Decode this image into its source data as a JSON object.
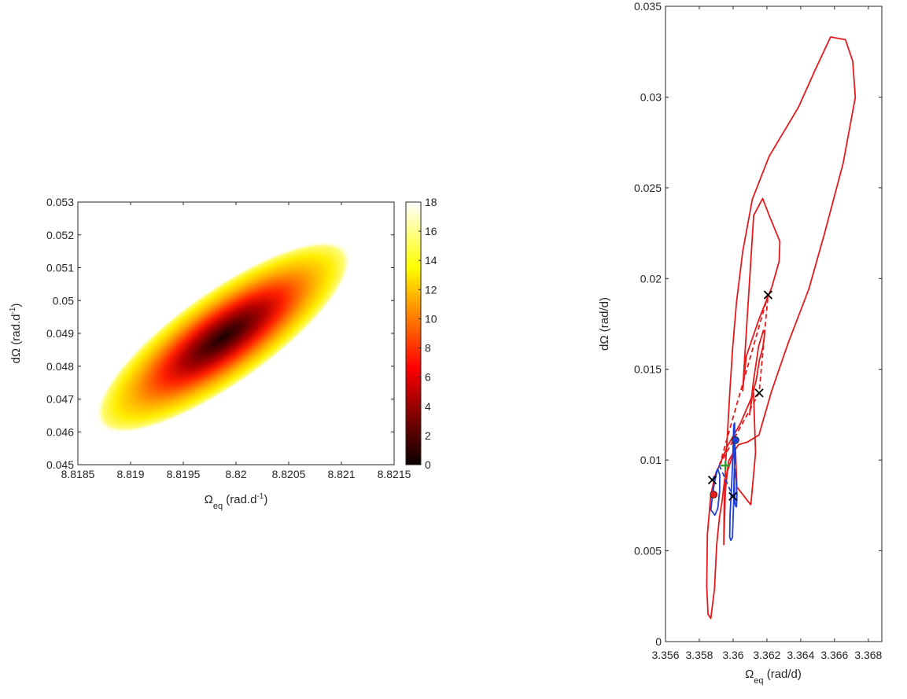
{
  "chart_data": [
    {
      "type": "heatmap",
      "xlabel": "Ω",
      "xlabel_sub": "eq",
      "xlabel_units_pre": " (rad.d",
      "xlabel_units_sup": "-1",
      "xlabel_units_post": ")",
      "ylabel": "dΩ (rad.d",
      "ylabel_sup": "-1",
      "ylabel_post": ")",
      "xlim": [
        8.8185,
        8.8215
      ],
      "ylim": [
        0.045,
        0.053
      ],
      "xticks": [
        8.8185,
        8.819,
        8.8195,
        8.82,
        8.8205,
        8.821,
        8.8215
      ],
      "xtick_labels": [
        "8.8185",
        "8.819",
        "8.8195",
        "8.82",
        "8.8205",
        "8.821",
        "8.8215"
      ],
      "yticks": [
        0.045,
        0.046,
        0.047,
        0.048,
        0.049,
        0.05,
        0.051,
        0.052,
        0.053
      ],
      "ytick_labels": [
        "0.045",
        "0.046",
        "0.047",
        "0.048",
        "0.049",
        "0.05",
        "0.051",
        "0.052",
        "0.053"
      ],
      "surface": {
        "center": [
          8.81988,
          0.04888
        ],
        "semi_major_axis": [
          0.0011,
          0.0025
        ],
        "semi_minor_axis": [
          -0.00034,
          0.00075
        ],
        "max_value": 18
      },
      "colorbar": {
        "colormap": "hot",
        "range": [
          0,
          18
        ],
        "ticks": [
          0,
          2,
          4,
          6,
          8,
          10,
          12,
          14,
          16,
          18
        ],
        "tick_labels": [
          "0",
          "2",
          "4",
          "6",
          "8",
          "10",
          "12",
          "14",
          "16",
          "18"
        ]
      }
    },
    {
      "type": "line",
      "xlabel": "Ω",
      "xlabel_sub": "eq",
      "xlabel_units": " (rad/d)",
      "ylabel": "dΩ (rad/d)",
      "xlim": [
        3.356,
        3.3688
      ],
      "ylim": [
        0,
        0.035
      ],
      "xticks": [
        3.356,
        3.358,
        3.36,
        3.362,
        3.364,
        3.366,
        3.368
      ],
      "xtick_labels": [
        "3.356",
        "3.358",
        "3.36",
        "3.362",
        "3.364",
        "3.366",
        "3.368"
      ],
      "yticks": [
        0,
        0.005,
        0.01,
        0.015,
        0.02,
        0.025,
        0.03,
        0.035
      ],
      "ytick_labels": [
        "0",
        "0.005",
        "0.01",
        "0.015",
        "0.02",
        "0.025",
        "0.03",
        "0.035"
      ],
      "series": [
        {
          "role": "contour",
          "color": "#e41a1c",
          "x": [
            3.36105,
            3.36022,
            3.36014,
            3.3595,
            3.35935,
            3.35919,
            3.35903,
            3.3589,
            3.35868,
            3.35852,
            3.35844,
            3.35848,
            3.35868,
            3.35894,
            3.35927,
            3.35964,
            3.36043,
            3.36121,
            3.36133,
            3.36105
          ],
          "y": [
            0.00753,
            0.00852,
            0.0107,
            0.00893,
            0.00776,
            0.00681,
            0.00534,
            0.00291,
            0.00128,
            0.00151,
            0.00305,
            0.00593,
            0.00808,
            0.00918,
            0.00988,
            0.01073,
            0.01201,
            0.0137,
            0.01041,
            0.00753
          ]
        },
        {
          "role": "contour",
          "color": "#e41a1c",
          "x": [
            3.35973,
            3.35997,
            3.36032,
            3.36084,
            3.36153,
            3.36228,
            3.36325,
            3.36448,
            3.36541,
            3.36651,
            3.36723,
            3.36708,
            3.36665,
            3.36577,
            3.36486,
            3.36386,
            3.36213,
            3.36114,
            3.36057,
            3.3602,
            3.35997,
            3.35981,
            3.35967,
            3.35956,
            3.35947,
            3.35945,
            3.35954,
            3.35973
          ],
          "y": [
            0.00994,
            0.01034,
            0.01085,
            0.01099,
            0.01138,
            0.0138,
            0.01643,
            0.01942,
            0.02249,
            0.02635,
            0.02998,
            0.03197,
            0.03316,
            0.03331,
            0.03151,
            0.02943,
            0.02673,
            0.02437,
            0.0215,
            0.01867,
            0.01613,
            0.01386,
            0.01147,
            0.00988,
            0.00755,
            0.00535,
            0.00831,
            0.00994
          ]
        },
        {
          "role": "contour",
          "color": "#e41a1c",
          "x": [
            3.36056,
            3.36078,
            3.36154,
            3.3623,
            3.36272,
            3.36277,
            3.36213,
            3.36175,
            3.36122,
            3.36056
          ],
          "y": [
            0.01379,
            0.01572,
            0.01778,
            0.01956,
            0.02094,
            0.02204,
            0.02349,
            0.02441,
            0.02348,
            0.01379
          ]
        },
        {
          "role": "contour",
          "color": "#e41a1c",
          "x": [
            3.36097,
            3.36114,
            3.36137,
            3.36155,
            3.36176,
            3.36186,
            3.36179,
            3.36151,
            3.36121,
            3.36097
          ],
          "y": [
            0.01246,
            0.01357,
            0.01442,
            0.01547,
            0.01622,
            0.01691,
            0.01714,
            0.01627,
            0.01438,
            0.01246
          ]
        },
        {
          "role": "contour",
          "color": "#1f3fd6",
          "x": [
            3.35868,
            3.35875,
            3.35889,
            3.35908,
            3.35921,
            3.3592,
            3.35909,
            3.35892,
            3.35878,
            3.35868
          ],
          "y": [
            0.00724,
            0.00782,
            0.00874,
            0.00952,
            0.00919,
            0.00826,
            0.00733,
            0.00696,
            0.00715,
            0.00724
          ]
        },
        {
          "role": "contour",
          "color": "#1f3fd6",
          "x": [
            3.3598,
            3.35982,
            3.35991,
            3.35998,
            3.36004,
            3.36009,
            3.36008,
            3.36003,
            3.35996,
            3.35987,
            3.3598
          ],
          "y": [
            0.00575,
            0.00701,
            0.00852,
            0.01012,
            0.01194,
            0.01204,
            0.00998,
            0.00764,
            0.00575,
            0.00558,
            0.00575
          ]
        },
        {
          "role": "contour",
          "color": "#1f3fd6",
          "x": [
            3.36012,
            3.36006,
            3.36009,
            3.36013,
            3.36019,
            3.36023,
            3.3602,
            3.36012
          ],
          "y": [
            0.00753,
            0.00896,
            0.00953,
            0.00931,
            0.00882,
            0.00803,
            0.00742,
            0.00753
          ]
        },
        {
          "role": "contour",
          "color": "#1f3fd6",
          "x": [
            3.36011,
            3.36006,
            3.36005,
            3.36008,
            3.36011,
            3.36011
          ],
          "y": [
            0.00976,
            0.01024,
            0.01082,
            0.01125,
            0.01066,
            0.00976
          ]
        },
        {
          "role": "connector",
          "color": "#e41a1c",
          "x": [
            3.35919,
            3.36154,
            3.36207
          ],
          "y": [
            0.0097,
            0.0137,
            0.0191
          ]
        },
        {
          "role": "connector",
          "color": "#e41a1c",
          "x": [
            3.35919,
            3.36207
          ],
          "y": [
            0.0097,
            0.0191
          ]
        },
        {
          "role": "connector",
          "color": "#1f3fd6",
          "x": [
            3.35877,
            3.35919,
            3.35999
          ],
          "y": [
            0.0089,
            0.0097,
            0.008
          ]
        }
      ],
      "markers": [
        {
          "symbol": "x",
          "color": "#000000",
          "x": 3.36207,
          "y": 0.0191
        },
        {
          "symbol": "x",
          "color": "#000000",
          "x": 3.36154,
          "y": 0.0137
        },
        {
          "symbol": "x",
          "color": "#000000",
          "x": 3.35877,
          "y": 0.0089
        },
        {
          "symbol": "x",
          "color": "#000000",
          "x": 3.35999,
          "y": 0.008
        },
        {
          "symbol": "circle",
          "color": "#1f3fd6",
          "x": 3.36014,
          "y": 0.0111
        },
        {
          "symbol": "circle",
          "color": "#e41a1c",
          "x": 3.35885,
          "y": 0.0081
        },
        {
          "symbol": "plus",
          "color": "#2ca02c",
          "x": 3.35955,
          "y": 0.0097
        }
      ]
    }
  ]
}
